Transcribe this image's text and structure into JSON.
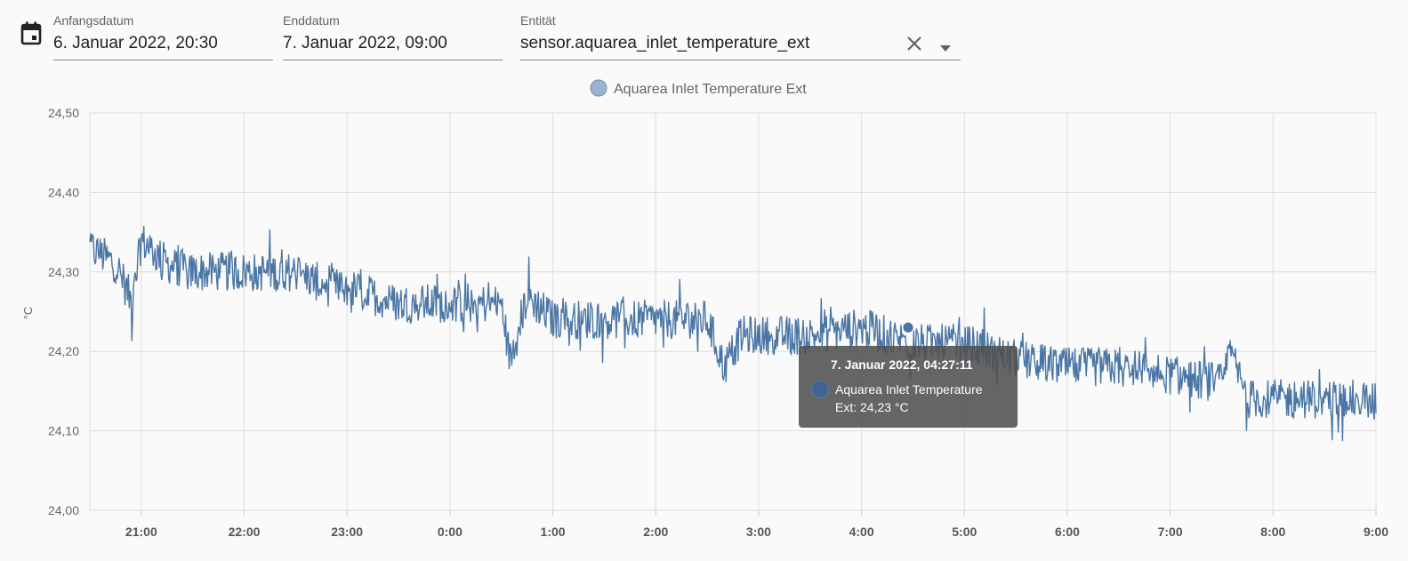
{
  "filters": {
    "start_label": "Anfangsdatum",
    "start_value": "6. Januar 2022, 20:30",
    "end_label": "Enddatum",
    "end_value": "7. Januar 2022, 09:00",
    "entity_label": "Entität",
    "entity_value": "sensor.aquarea_inlet_temperature_ext"
  },
  "icons": {
    "calendar": "calendar-icon",
    "clear": "close-icon",
    "dropdown": "arrow-drop-down-icon"
  },
  "colors": {
    "series": "#4a76a5",
    "legend_dot": "#9db3cd",
    "tooltip_bg": "#505050"
  },
  "tooltip": {
    "title": "7. Januar 2022, 04:27:11",
    "series_line1": "Aquarea Inlet Temperature",
    "series_line2": "Ext: 24,23 °C"
  },
  "chart_data": {
    "type": "line",
    "ylabel": "°C",
    "ylim": [
      24.0,
      24.5
    ],
    "xlim": [
      "2022-01-06T20:30",
      "2022-01-07T09:00"
    ],
    "yticks": [
      "24,00",
      "24,10",
      "24,20",
      "24,30",
      "24,40",
      "24,50"
    ],
    "xticks": [
      "21:00",
      "22:00",
      "23:00",
      "0:00",
      "1:00",
      "2:00",
      "3:00",
      "4:00",
      "5:00",
      "6:00",
      "7:00",
      "8:00",
      "9:00"
    ],
    "grid": true,
    "legend_position": "top-center",
    "series": [
      {
        "name": "Aquarea Inlet Temperature Ext",
        "x": [
          "20:30",
          "20:45",
          "20:55",
          "21:00",
          "21:15",
          "21:30",
          "22:00",
          "22:30",
          "22:50",
          "23:00",
          "23:30",
          "0:00",
          "0:30",
          "0:35",
          "0:45",
          "1:00",
          "1:30",
          "2:00",
          "2:30",
          "2:40",
          "2:50",
          "3:00",
          "3:30",
          "4:00",
          "4:30",
          "5:00",
          "5:30",
          "6:00",
          "6:30",
          "7:00",
          "7:30",
          "7:35",
          "7:45",
          "8:00",
          "8:30",
          "9:00"
        ],
        "values": [
          24.33,
          24.31,
          24.26,
          24.34,
          24.31,
          24.3,
          24.3,
          24.3,
          24.28,
          24.28,
          24.26,
          24.26,
          24.26,
          24.19,
          24.27,
          24.24,
          24.24,
          24.24,
          24.24,
          24.18,
          24.22,
          24.22,
          24.22,
          24.23,
          24.21,
          24.21,
          24.19,
          24.18,
          24.18,
          24.17,
          24.16,
          24.2,
          24.14,
          24.14,
          24.14,
          24.14
        ]
      }
    ]
  }
}
